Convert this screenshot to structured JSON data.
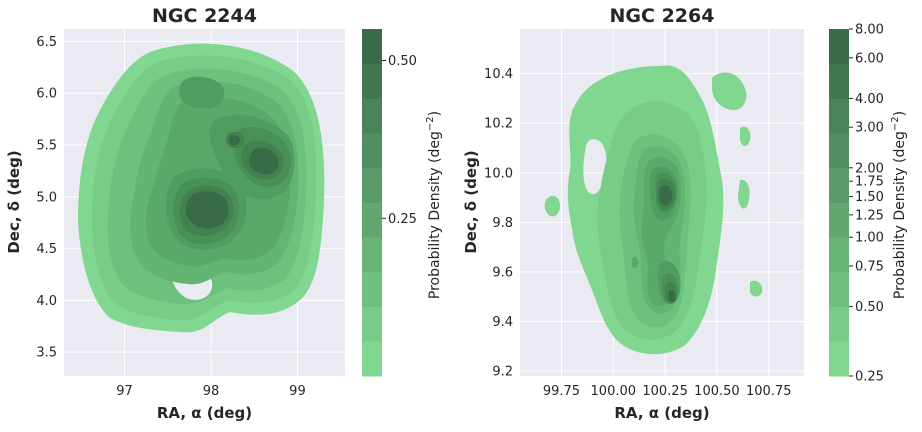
{
  "chart_data": [
    {
      "type": "kde-contour",
      "title": "NGC 2244",
      "xlabel": "RA, α (deg)",
      "ylabel": "Dec, δ (deg)",
      "xlim": [
        96.3,
        99.55
      ],
      "ylim": [
        3.27,
        6.62
      ],
      "xticks": [
        97,
        98,
        99
      ],
      "yticks": [
        3.5,
        4.0,
        4.5,
        5.0,
        5.5,
        6.0,
        6.5
      ],
      "grid": true,
      "colorbar": {
        "label": "Probability Density (deg",
        "label_unit_exp": "−2",
        "label_close": ")",
        "range": [
          0,
          0.55
        ],
        "scale": "linear",
        "tick_values": [
          0.25,
          0.5
        ],
        "tick_labels": [
          "0.25",
          "0.50"
        ],
        "levels": 10
      },
      "density_peaks": [
        {
          "ra": 98.03,
          "dec": 4.9,
          "level": 0.55
        },
        {
          "ra": 98.8,
          "dec": 5.43,
          "level": 0.5
        },
        {
          "ra": 98.33,
          "dec": 5.57,
          "level": 0.45
        },
        {
          "ra": 98.02,
          "dec": 6.05,
          "level": 0.32
        }
      ]
    },
    {
      "type": "kde-contour",
      "title": "NGC 2264",
      "xlabel": "RA, α (deg)",
      "ylabel": "Dec, δ (deg)",
      "xlim": [
        99.55,
        100.92
      ],
      "ylim": [
        9.18,
        10.58
      ],
      "xticks": [
        99.75,
        100.0,
        100.25,
        100.5,
        100.75
      ],
      "xtick_labels": [
        "99.75",
        "100.00",
        "100.25",
        "100.50",
        "100.75"
      ],
      "yticks": [
        9.2,
        9.4,
        9.6,
        9.8,
        10.0,
        10.2,
        10.4
      ],
      "grid": true,
      "colorbar": {
        "label": "Probability Density (deg",
        "label_unit_exp": "−2",
        "label_close": ")",
        "range": [
          0.25,
          8.0
        ],
        "scale": "log",
        "tick_values": [
          0.25,
          0.5,
          0.75,
          1.0,
          1.25,
          1.5,
          1.75,
          2.0,
          3.0,
          4.0,
          6.0,
          8.0
        ],
        "tick_labels": [
          "0.25",
          "0.50",
          "0.75",
          "1.00",
          "1.25",
          "1.50",
          "1.75",
          "2.00",
          "3.00",
          "4.00",
          "6.00",
          "8.00"
        ],
        "levels": 10
      },
      "density_peaks": [
        {
          "ra": 100.24,
          "dec": 9.87,
          "level": 8.0
        },
        {
          "ra": 100.28,
          "dec": 9.49,
          "level": 6.0
        }
      ]
    }
  ],
  "colors": {
    "background": "#eaeaf2",
    "grid": "#ffffff",
    "ramp_low": "#81d78f",
    "ramp_high": "#3a6b48"
  }
}
